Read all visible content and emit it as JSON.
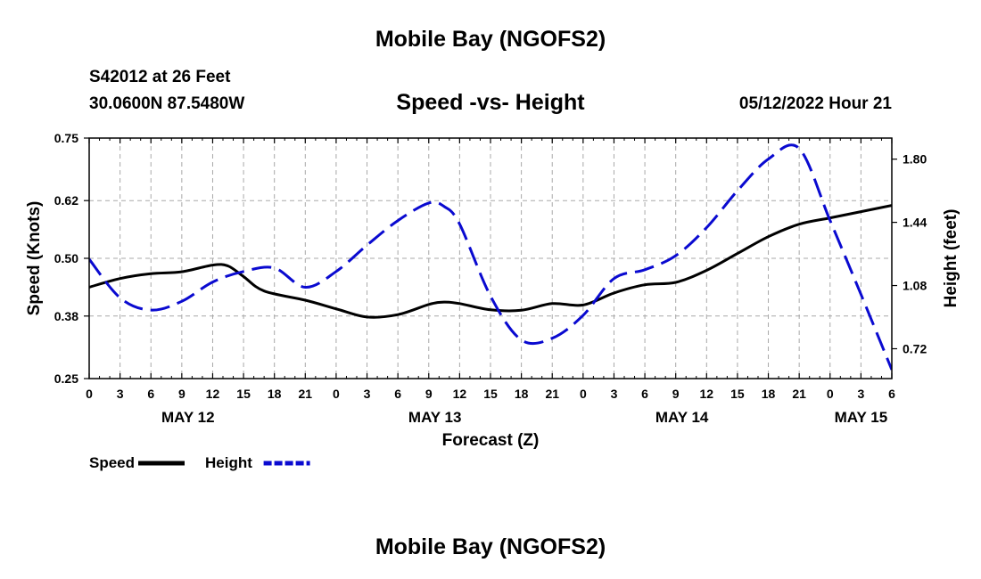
{
  "header": {
    "title": "Mobile Bay (NGOFS2)",
    "station": "S42012 at 26 Feet",
    "coords": "30.0600N  87.5480W",
    "subtitle": "Speed -vs- Height",
    "datetime": "05/12/2022 Hour 21"
  },
  "footer": {
    "title": "Mobile Bay (NGOFS2)"
  },
  "chart_data": {
    "type": "line",
    "title": "Speed -vs- Height",
    "xlabel": "Forecast (Z)",
    "ylabel": "Speed (Knots)",
    "y2label": "Height (feet)",
    "grid": true,
    "xlim": [
      0,
      78
    ],
    "ylim": [
      0.25,
      0.75
    ],
    "y2lim": [
      0.55,
      1.92
    ],
    "x_tick_values": [
      0,
      3,
      6,
      9,
      12,
      15,
      18,
      21,
      24,
      27,
      30,
      33,
      36,
      39,
      42,
      45,
      48,
      51,
      54,
      57,
      60,
      63,
      66,
      69,
      72,
      75,
      78
    ],
    "x_tick_labels": [
      "0",
      "3",
      "6",
      "9",
      "12",
      "15",
      "18",
      "21",
      "0",
      "3",
      "6",
      "9",
      "12",
      "15",
      "18",
      "21",
      "0",
      "3",
      "6",
      "9",
      "12",
      "15",
      "18",
      "21",
      "0",
      "3",
      "6"
    ],
    "date_labels": [
      {
        "x": 9.6,
        "label": "MAY 12"
      },
      {
        "x": 33.6,
        "label": "MAY 13"
      },
      {
        "x": 57.6,
        "label": "MAY 14"
      },
      {
        "x": 75.0,
        "label": "MAY 15"
      }
    ],
    "y_ticks": [
      0.25,
      0.38,
      0.5,
      0.62,
      0.75
    ],
    "y_tick_labels": [
      "0.25",
      "0.38",
      "0.50",
      "0.62",
      "0.75"
    ],
    "y2_ticks": [
      0.72,
      1.08,
      1.44,
      1.8
    ],
    "y2_tick_labels": [
      "0.72",
      "1.08",
      "1.44",
      "1.80"
    ],
    "series": [
      {
        "name": "Speed",
        "axis": "left",
        "color": "#000000",
        "dash": "solid",
        "x": [
          0,
          3,
          6,
          9,
          12,
          13.5,
          15,
          17,
          21,
          24,
          27,
          30,
          33,
          34.5,
          36,
          39,
          42,
          45,
          48,
          51,
          54,
          57,
          60,
          63,
          66,
          69,
          72,
          75,
          78
        ],
        "y": [
          0.44,
          0.458,
          0.468,
          0.472,
          0.486,
          0.484,
          0.462,
          0.432,
          0.413,
          0.395,
          0.378,
          0.383,
          0.404,
          0.409,
          0.406,
          0.393,
          0.392,
          0.406,
          0.403,
          0.428,
          0.445,
          0.45,
          0.475,
          0.51,
          0.545,
          0.571,
          0.584,
          0.597,
          0.61
        ]
      },
      {
        "name": "Height",
        "axis": "right",
        "color": "#0a0ad0",
        "dash": "dashed",
        "x": [
          0,
          3,
          6,
          9,
          12,
          15,
          18,
          21,
          24,
          27,
          30,
          33,
          34.5,
          36,
          39,
          42,
          45,
          48,
          51,
          54,
          57,
          60,
          63,
          66,
          69,
          72,
          75,
          78
        ],
        "y": [
          1.23,
          1.01,
          0.94,
          0.99,
          1.1,
          1.16,
          1.18,
          1.07,
          1.16,
          1.31,
          1.45,
          1.55,
          1.53,
          1.43,
          1.02,
          0.77,
          0.78,
          0.91,
          1.12,
          1.17,
          1.25,
          1.41,
          1.62,
          1.8,
          1.86,
          1.45,
          1.03,
          0.6
        ]
      }
    ],
    "legend": [
      {
        "label": "Speed",
        "color": "#000000",
        "dash": "solid"
      },
      {
        "label": "Height",
        "color": "#0a0ad0",
        "dash": "dashed"
      }
    ],
    "legend_position": "bottom-left"
  }
}
